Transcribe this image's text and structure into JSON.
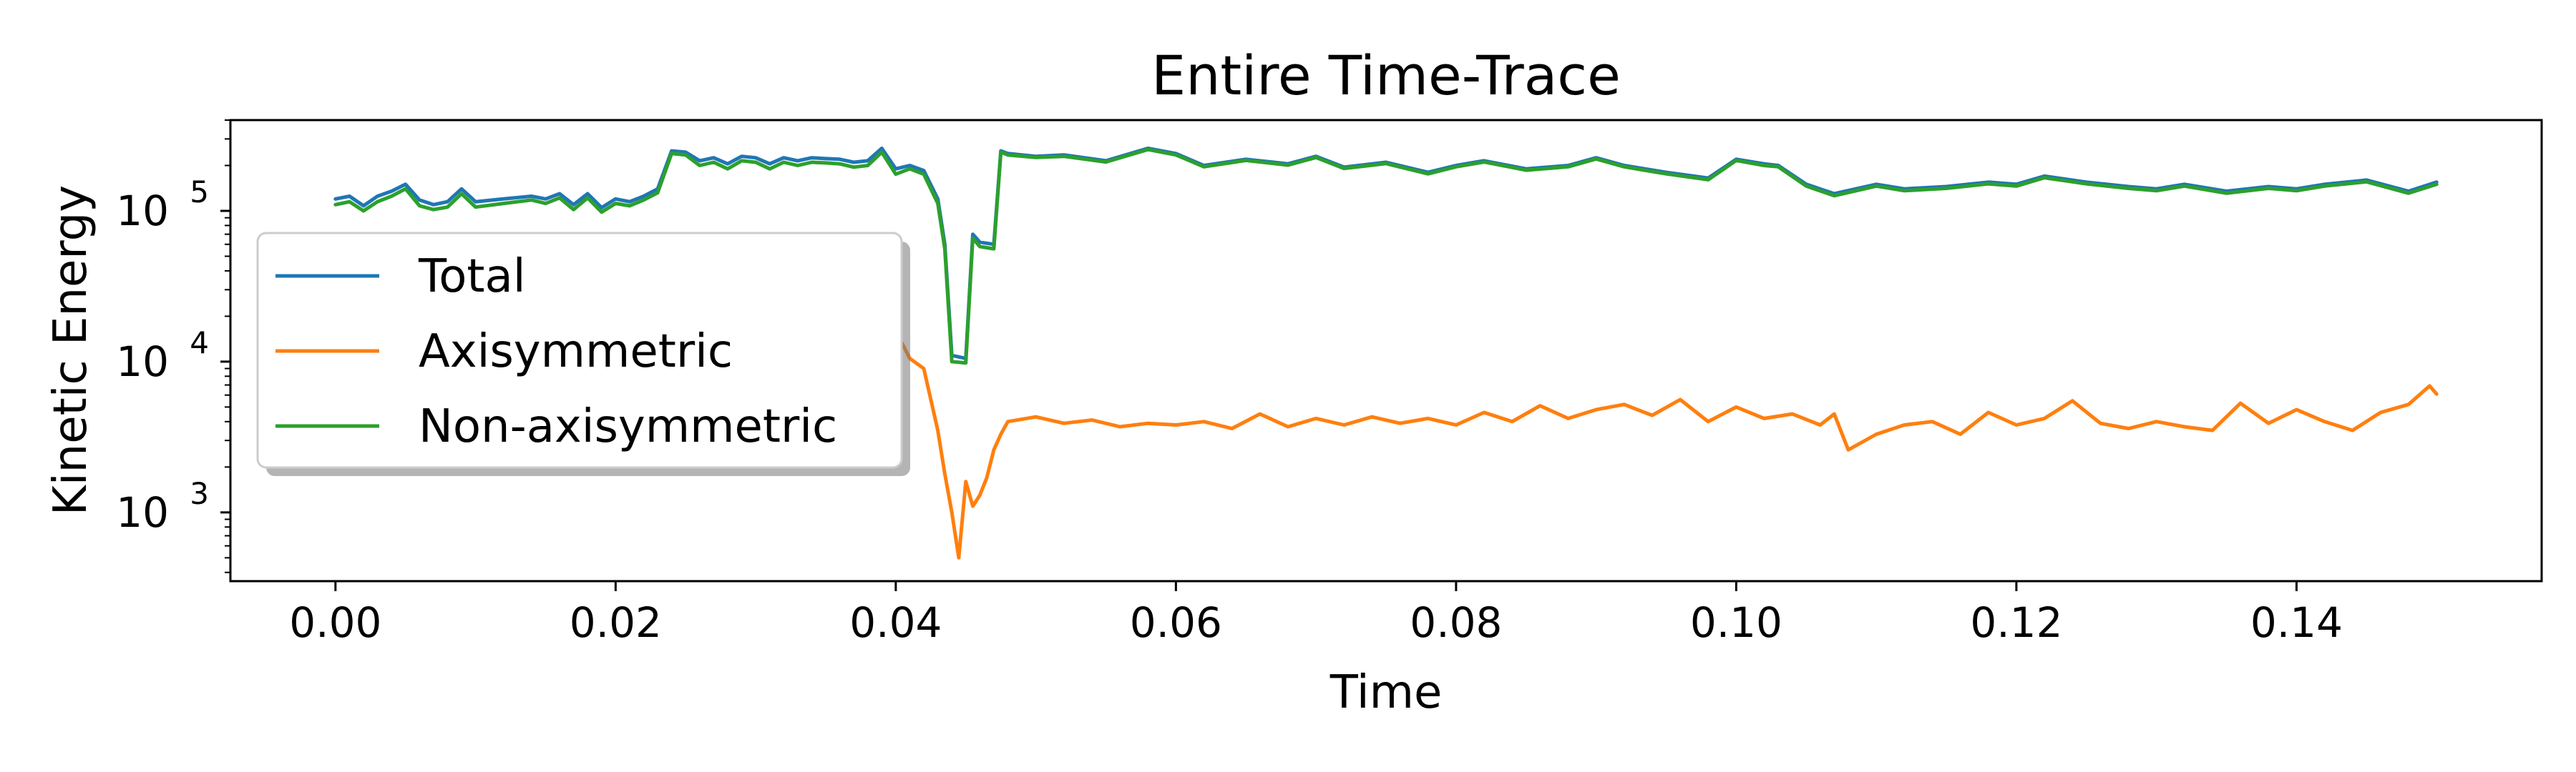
{
  "chart_data": {
    "type": "line",
    "title": "Entire Time-Trace",
    "xlabel": "Time",
    "ylabel": "Kinetic Energy",
    "yscale": "log",
    "xlim": [
      -0.0075,
      0.1575
    ],
    "ylim": [
      350,
      400000
    ],
    "xticks": [
      {
        "value": 0.0,
        "label": "0.00"
      },
      {
        "value": 0.02,
        "label": "0.02"
      },
      {
        "value": 0.04,
        "label": "0.04"
      },
      {
        "value": 0.06,
        "label": "0.06"
      },
      {
        "value": 0.08,
        "label": "0.08"
      },
      {
        "value": 0.1,
        "label": "0.10"
      },
      {
        "value": 0.12,
        "label": "0.12"
      },
      {
        "value": 0.14,
        "label": "0.14"
      }
    ],
    "yticks": [
      {
        "value": 1000,
        "base": "10",
        "exp": "3"
      },
      {
        "value": 10000,
        "base": "10",
        "exp": "4"
      },
      {
        "value": 100000,
        "base": "10",
        "exp": "5"
      }
    ],
    "legend_position": "center-left",
    "grid": false,
    "series": [
      {
        "name": "Total",
        "color": "#1f77b4",
        "x": [
          0.0,
          0.001,
          0.002,
          0.003,
          0.004,
          0.005,
          0.006,
          0.007,
          0.008,
          0.009,
          0.01,
          0.012,
          0.014,
          0.015,
          0.016,
          0.017,
          0.018,
          0.019,
          0.02,
          0.021,
          0.022,
          0.023,
          0.024,
          0.025,
          0.026,
          0.027,
          0.028,
          0.029,
          0.03,
          0.031,
          0.032,
          0.033,
          0.034,
          0.035,
          0.036,
          0.037,
          0.038,
          0.039,
          0.04,
          0.041,
          0.042,
          0.043,
          0.0435,
          0.044,
          0.045,
          0.0455,
          0.046,
          0.047,
          0.0475,
          0.048,
          0.05,
          0.052,
          0.055,
          0.058,
          0.06,
          0.062,
          0.065,
          0.068,
          0.07,
          0.072,
          0.075,
          0.078,
          0.08,
          0.082,
          0.085,
          0.088,
          0.09,
          0.092,
          0.095,
          0.098,
          0.1,
          0.102,
          0.103,
          0.105,
          0.107,
          0.11,
          0.112,
          0.115,
          0.118,
          0.12,
          0.122,
          0.125,
          0.128,
          0.13,
          0.132,
          0.135,
          0.138,
          0.14,
          0.142,
          0.145,
          0.148,
          0.15
        ],
        "y": [
          120000,
          125000,
          108000,
          125000,
          135000,
          150000,
          118000,
          110000,
          115000,
          140000,
          115000,
          120000,
          125000,
          120000,
          130000,
          110000,
          130000,
          105000,
          120000,
          115000,
          125000,
          140000,
          250000,
          245000,
          215000,
          225000,
          205000,
          230000,
          225000,
          205000,
          225000,
          215000,
          225000,
          222000,
          220000,
          210000,
          215000,
          260000,
          190000,
          200000,
          185000,
          120000,
          60000,
          11000,
          10500,
          70000,
          62000,
          60000,
          250000,
          240000,
          230000,
          235000,
          215000,
          260000,
          240000,
          200000,
          220000,
          205000,
          230000,
          195000,
          210000,
          180000,
          200000,
          215000,
          190000,
          200000,
          225000,
          200000,
          180000,
          165000,
          220000,
          205000,
          200000,
          150000,
          130000,
          150000,
          140000,
          145000,
          155000,
          150000,
          170000,
          155000,
          145000,
          140000,
          150000,
          135000,
          145000,
          140000,
          150000,
          160000,
          135000,
          155000
        ]
      },
      {
        "name": "Axisymmetric",
        "color": "#ff7f0e",
        "x": [
          0.04,
          0.0405,
          0.041,
          0.042,
          0.043,
          0.0435,
          0.044,
          0.0445,
          0.045,
          0.0455,
          0.046,
          0.0465,
          0.047,
          0.0475,
          0.048,
          0.05,
          0.052,
          0.054,
          0.056,
          0.058,
          0.06,
          0.062,
          0.064,
          0.066,
          0.068,
          0.07,
          0.072,
          0.074,
          0.076,
          0.078,
          0.08,
          0.082,
          0.084,
          0.086,
          0.088,
          0.09,
          0.092,
          0.094,
          0.096,
          0.098,
          0.1,
          0.102,
          0.104,
          0.106,
          0.107,
          0.108,
          0.11,
          0.112,
          0.114,
          0.116,
          0.118,
          0.12,
          0.122,
          0.124,
          0.126,
          0.128,
          0.13,
          0.132,
          0.134,
          0.136,
          0.138,
          0.14,
          0.142,
          0.144,
          0.146,
          0.148,
          0.1495,
          0.15
        ],
        "y": [
          15000,
          13000,
          10500,
          9000,
          3500,
          1800,
          1000,
          500,
          1600,
          1100,
          1300,
          1700,
          2600,
          3300,
          4000,
          4300,
          3900,
          4100,
          3700,
          3900,
          3800,
          4000,
          3600,
          4500,
          3700,
          4200,
          3800,
          4300,
          3900,
          4200,
          3800,
          4600,
          4000,
          5100,
          4200,
          4800,
          5200,
          4400,
          5600,
          4000,
          5000,
          4200,
          4500,
          3800,
          4500,
          2600,
          3300,
          3800,
          4000,
          3300,
          4600,
          3800,
          4200,
          5500,
          3900,
          3600,
          4000,
          3700,
          3500,
          5300,
          3900,
          4800,
          4000,
          3500,
          4600,
          5200,
          6900,
          6100
        ]
      },
      {
        "name": "Non-axisymmetric",
        "color": "#2ca02c",
        "x": [
          0.0,
          0.001,
          0.002,
          0.003,
          0.004,
          0.005,
          0.006,
          0.007,
          0.008,
          0.009,
          0.01,
          0.012,
          0.014,
          0.015,
          0.016,
          0.017,
          0.018,
          0.019,
          0.02,
          0.021,
          0.022,
          0.023,
          0.024,
          0.025,
          0.026,
          0.027,
          0.028,
          0.029,
          0.03,
          0.031,
          0.032,
          0.033,
          0.034,
          0.035,
          0.036,
          0.037,
          0.038,
          0.039,
          0.04,
          0.041,
          0.042,
          0.043,
          0.0435,
          0.044,
          0.045,
          0.0455,
          0.046,
          0.047,
          0.0475,
          0.048,
          0.05,
          0.052,
          0.055,
          0.058,
          0.06,
          0.062,
          0.065,
          0.068,
          0.07,
          0.072,
          0.075,
          0.078,
          0.08,
          0.082,
          0.085,
          0.088,
          0.09,
          0.092,
          0.095,
          0.098,
          0.1,
          0.102,
          0.103,
          0.105,
          0.107,
          0.11,
          0.112,
          0.115,
          0.118,
          0.12,
          0.122,
          0.125,
          0.128,
          0.13,
          0.132,
          0.135,
          0.138,
          0.14,
          0.142,
          0.145,
          0.148,
          0.15
        ],
        "y": [
          110000,
          115000,
          100000,
          115000,
          125000,
          140000,
          108000,
          102000,
          106000,
          130000,
          106000,
          112000,
          118000,
          112000,
          122000,
          102000,
          122000,
          98000,
          112000,
          108000,
          118000,
          132000,
          240000,
          235000,
          200000,
          210000,
          190000,
          215000,
          210000,
          190000,
          210000,
          200000,
          210000,
          208000,
          205000,
          195000,
          200000,
          245000,
          175000,
          190000,
          175000,
          112000,
          56000,
          10000,
          9800,
          66000,
          58000,
          56000,
          245000,
          235000,
          226000,
          230000,
          211000,
          255000,
          235000,
          196000,
          216000,
          201000,
          226000,
          191000,
          206000,
          176000,
          196000,
          211000,
          186000,
          196000,
          221000,
          196000,
          176000,
          161000,
          216000,
          200000,
          196000,
          146000,
          126000,
          146000,
          136000,
          141000,
          151000,
          146000,
          166000,
          151000,
          141000,
          136000,
          146000,
          131000,
          141000,
          136000,
          146000,
          156000,
          131000,
          150000
        ]
      }
    ]
  }
}
